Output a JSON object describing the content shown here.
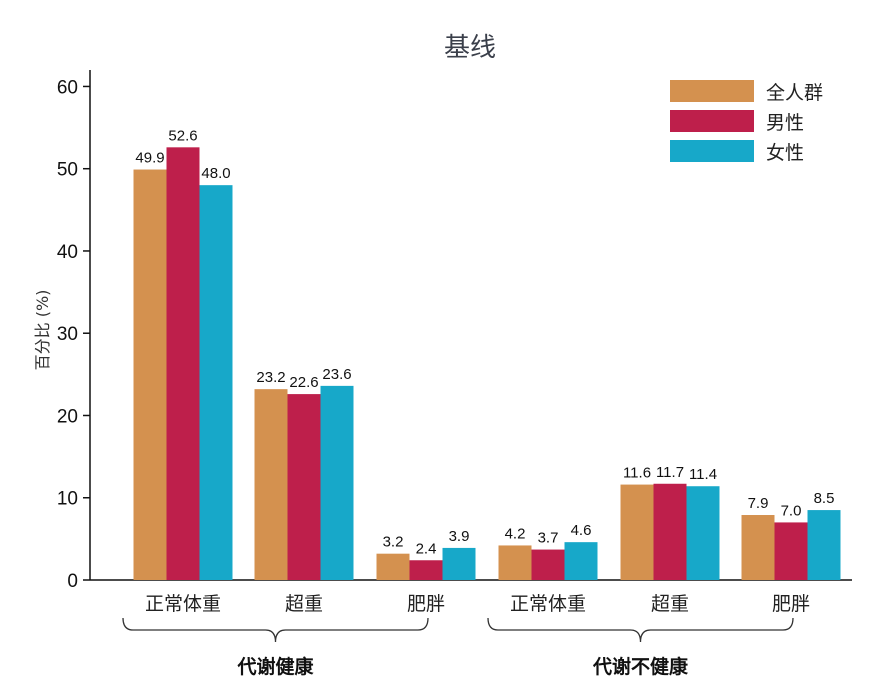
{
  "chart_data": {
    "type": "bar",
    "title": "基线",
    "ylabel": "百分比 (%)",
    "ylim": [
      0,
      62
    ],
    "yticks": [
      0,
      10,
      20,
      30,
      40,
      50,
      60
    ],
    "categories": [
      "正常体重",
      "超重",
      "肥胖",
      "正常体重",
      "超重",
      "肥胖"
    ],
    "groups": [
      {
        "label": "代谢健康",
        "start": 0,
        "end": 2
      },
      {
        "label": "代谢不健康",
        "start": 3,
        "end": 5
      }
    ],
    "series": [
      {
        "name": "全人群",
        "color": "#D4914F",
        "values": [
          49.9,
          23.2,
          3.2,
          4.2,
          11.6,
          7.9
        ]
      },
      {
        "name": "男性",
        "color": "#BE1F4B",
        "values": [
          52.6,
          22.6,
          2.4,
          3.7,
          11.7,
          7.0
        ]
      },
      {
        "name": "女性",
        "color": "#17A8C9",
        "values": [
          48.0,
          23.6,
          3.9,
          4.6,
          11.4,
          8.5
        ]
      }
    ],
    "data_labels": [
      [
        "49.9",
        "23.2",
        "3.2",
        "4.2",
        "11.6",
        "7.9"
      ],
      [
        "52.6",
        "22.6",
        "2.4",
        "3.7",
        "11.7",
        "7.0"
      ],
      [
        "48.0",
        "23.6",
        "3.9",
        "4.6",
        "11.4",
        "8.5"
      ]
    ],
    "legend_position": "top-right",
    "grid": false
  }
}
